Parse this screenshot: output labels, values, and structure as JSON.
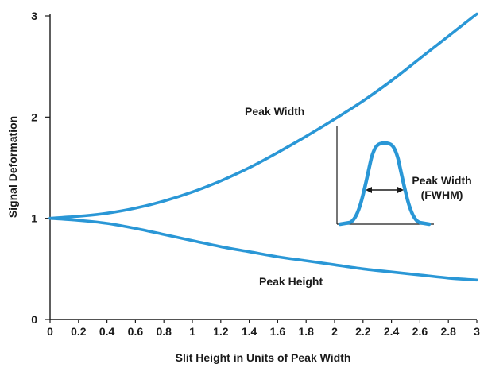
{
  "chart_data": {
    "type": "line",
    "xlabel": "Slit Height in Units of Peak Width",
    "ylabel": "Signal Deformation",
    "xlim": [
      0,
      3
    ],
    "ylim": [
      0,
      3
    ],
    "xticks": [
      "0",
      "0.2",
      "0.4",
      "0.6",
      "0.8",
      "1",
      "1.2",
      "1.4",
      "1.6",
      "1.8",
      "2",
      "2.2",
      "2.4",
      "2.6",
      "2.8",
      "3"
    ],
    "yticks": [
      "0",
      "1",
      "2",
      "3"
    ],
    "grid": false,
    "line_color": "#2a97d6",
    "series": [
      {
        "name": "Peak Width",
        "x": [
          0,
          0.2,
          0.4,
          0.6,
          0.8,
          1.0,
          1.2,
          1.4,
          1.6,
          1.8,
          2.0,
          2.2,
          2.4,
          2.6,
          2.8,
          3.0
        ],
        "y": [
          1.0,
          1.02,
          1.05,
          1.1,
          1.17,
          1.26,
          1.37,
          1.5,
          1.65,
          1.81,
          1.98,
          2.16,
          2.36,
          2.58,
          2.8,
          3.02
        ]
      },
      {
        "name": "Peak Height",
        "x": [
          0,
          0.2,
          0.4,
          0.6,
          0.8,
          1.0,
          1.2,
          1.4,
          1.6,
          1.8,
          2.0,
          2.2,
          2.4,
          2.6,
          2.8,
          3.0
        ],
        "y": [
          1.0,
          0.98,
          0.95,
          0.9,
          0.84,
          0.78,
          0.72,
          0.67,
          0.62,
          0.58,
          0.54,
          0.5,
          0.47,
          0.44,
          0.41,
          0.39
        ]
      }
    ],
    "inset": {
      "label": "Peak Width",
      "label_sub": "(FWHM)"
    }
  }
}
